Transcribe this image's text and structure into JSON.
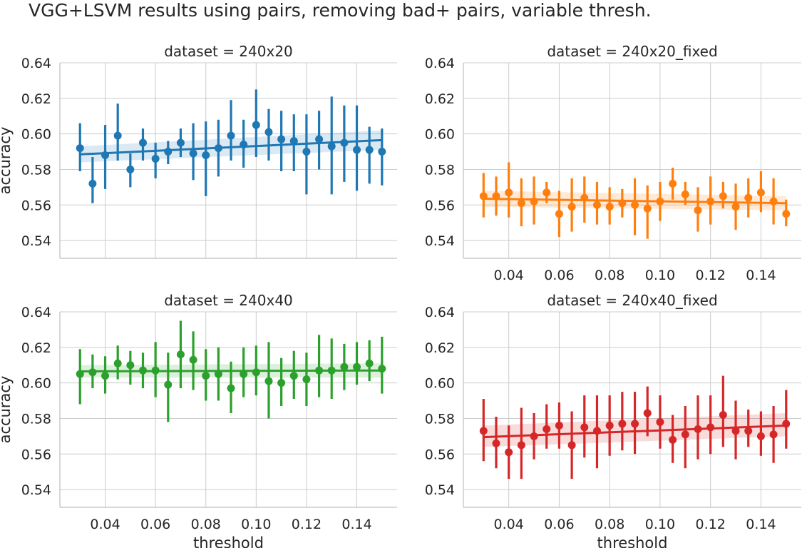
{
  "chart_data": {
    "type": "scatter",
    "title": "VGG+LSVM results using pairs, removing bad+ pairs, variable thresh.",
    "xlabel": "threshold",
    "ylabel": "accuracy",
    "xlim": [
      0.022,
      0.156
    ],
    "ylim": [
      0.53,
      0.64
    ],
    "xticks": [
      0.04,
      0.06,
      0.08,
      0.1,
      0.12,
      0.14
    ],
    "xtick_labels": [
      "0.04",
      "0.06",
      "0.08",
      "0.10",
      "0.12",
      "0.14"
    ],
    "yticks": [
      0.54,
      0.56,
      0.58,
      0.6,
      0.62,
      0.64
    ],
    "ytick_labels": [
      "0.54",
      "0.56",
      "0.58",
      "0.60",
      "0.62",
      "0.64"
    ],
    "grid": true,
    "x": [
      0.03,
      0.035,
      0.04,
      0.045,
      0.05,
      0.055,
      0.06,
      0.065,
      0.07,
      0.075,
      0.08,
      0.085,
      0.09,
      0.095,
      0.1,
      0.105,
      0.11,
      0.115,
      0.12,
      0.125,
      0.13,
      0.135,
      0.14,
      0.145,
      0.15
    ],
    "panels": [
      {
        "title": "dataset = 240x20",
        "color": "#1f77b4",
        "mean": [
          0.592,
          0.572,
          0.588,
          0.599,
          0.58,
          0.595,
          0.586,
          0.59,
          0.595,
          0.589,
          0.588,
          0.592,
          0.599,
          0.594,
          0.605,
          0.601,
          0.597,
          0.596,
          0.59,
          0.597,
          0.593,
          0.595,
          0.591,
          0.591,
          0.59
        ],
        "ci_low": [
          0.579,
          0.561,
          0.569,
          0.585,
          0.57,
          0.585,
          0.575,
          0.583,
          0.587,
          0.574,
          0.565,
          0.576,
          0.585,
          0.581,
          0.587,
          0.585,
          0.579,
          0.579,
          0.566,
          0.58,
          0.566,
          0.573,
          0.568,
          0.572,
          0.571
        ],
        "ci_high": [
          0.606,
          0.587,
          0.605,
          0.617,
          0.589,
          0.603,
          0.595,
          0.596,
          0.603,
          0.606,
          0.607,
          0.608,
          0.619,
          0.608,
          0.625,
          0.614,
          0.613,
          0.611,
          0.611,
          0.613,
          0.621,
          0.616,
          0.616,
          0.604,
          0.603
        ],
        "reg_start": 0.5885,
        "reg_end": 0.5965,
        "band_start": [
          0.584,
          0.593
        ],
        "band_end": [
          0.591,
          0.602
        ],
        "show_xticklabels": false,
        "show_xlabel": false,
        "show_ylabel": true
      },
      {
        "title": "dataset = 240x20_fixed",
        "color": "#ff7f0e",
        "mean": [
          0.565,
          0.565,
          0.567,
          0.561,
          0.562,
          0.567,
          0.555,
          0.559,
          0.564,
          0.56,
          0.559,
          0.561,
          0.56,
          0.558,
          0.562,
          0.572,
          0.566,
          0.557,
          0.562,
          0.565,
          0.559,
          0.564,
          0.567,
          0.562,
          0.555
        ],
        "ci_low": [
          0.553,
          0.554,
          0.553,
          0.548,
          0.549,
          0.561,
          0.542,
          0.545,
          0.55,
          0.549,
          0.549,
          0.553,
          0.543,
          0.541,
          0.551,
          0.563,
          0.56,
          0.545,
          0.549,
          0.558,
          0.546,
          0.553,
          0.556,
          0.549,
          0.548
        ],
        "ci_high": [
          0.578,
          0.576,
          0.584,
          0.575,
          0.576,
          0.573,
          0.568,
          0.575,
          0.576,
          0.573,
          0.57,
          0.569,
          0.575,
          0.571,
          0.573,
          0.581,
          0.573,
          0.57,
          0.576,
          0.573,
          0.572,
          0.575,
          0.579,
          0.575,
          0.563
        ],
        "reg_start": 0.5635,
        "reg_end": 0.561,
        "band_start": [
          0.559,
          0.568
        ],
        "band_end": [
          0.557,
          0.565
        ],
        "show_xticklabels": true,
        "show_xlabel": false,
        "show_ylabel": false
      },
      {
        "title": "dataset = 240x40",
        "color": "#2ca02c",
        "mean": [
          0.605,
          0.606,
          0.604,
          0.611,
          0.61,
          0.607,
          0.607,
          0.599,
          0.616,
          0.613,
          0.604,
          0.605,
          0.597,
          0.605,
          0.606,
          0.601,
          0.6,
          0.604,
          0.602,
          0.607,
          0.607,
          0.609,
          0.609,
          0.611,
          0.608
        ],
        "ci_low": [
          0.588,
          0.597,
          0.594,
          0.602,
          0.599,
          0.597,
          0.592,
          0.578,
          0.597,
          0.596,
          0.59,
          0.59,
          0.583,
          0.592,
          0.593,
          0.58,
          0.587,
          0.591,
          0.587,
          0.592,
          0.591,
          0.596,
          0.599,
          0.601,
          0.594
        ],
        "ci_high": [
          0.619,
          0.616,
          0.615,
          0.621,
          0.618,
          0.617,
          0.623,
          0.617,
          0.635,
          0.629,
          0.619,
          0.62,
          0.612,
          0.62,
          0.621,
          0.623,
          0.614,
          0.618,
          0.617,
          0.627,
          0.625,
          0.622,
          0.623,
          0.624,
          0.626
        ],
        "reg_start": 0.6065,
        "reg_end": 0.607,
        "band_start": [
          0.603,
          0.61
        ],
        "band_end": [
          0.603,
          0.611
        ],
        "show_xticklabels": true,
        "show_xlabel": true,
        "show_ylabel": true
      },
      {
        "title": "dataset = 240x40_fixed",
        "color": "#d62728",
        "mean": [
          0.573,
          0.566,
          0.561,
          0.565,
          0.57,
          0.574,
          0.576,
          0.565,
          0.575,
          0.573,
          0.576,
          0.577,
          0.577,
          0.583,
          0.578,
          0.568,
          0.571,
          0.574,
          0.575,
          0.582,
          0.573,
          0.573,
          0.57,
          0.571,
          0.577
        ],
        "ci_low": [
          0.556,
          0.552,
          0.546,
          0.546,
          0.557,
          0.563,
          0.563,
          0.546,
          0.558,
          0.552,
          0.559,
          0.562,
          0.56,
          0.57,
          0.563,
          0.555,
          0.552,
          0.557,
          0.56,
          0.564,
          0.557,
          0.564,
          0.559,
          0.555,
          0.563
        ],
        "ci_high": [
          0.591,
          0.581,
          0.576,
          0.586,
          0.583,
          0.588,
          0.589,
          0.584,
          0.593,
          0.593,
          0.593,
          0.595,
          0.595,
          0.598,
          0.593,
          0.582,
          0.587,
          0.593,
          0.593,
          0.604,
          0.59,
          0.585,
          0.584,
          0.587,
          0.596
        ],
        "reg_start": 0.5695,
        "reg_end": 0.576,
        "band_start": [
          0.564,
          0.576
        ],
        "band_end": [
          0.57,
          0.583
        ],
        "show_xticklabels": true,
        "show_xlabel": true,
        "show_ylabel": false
      }
    ]
  }
}
